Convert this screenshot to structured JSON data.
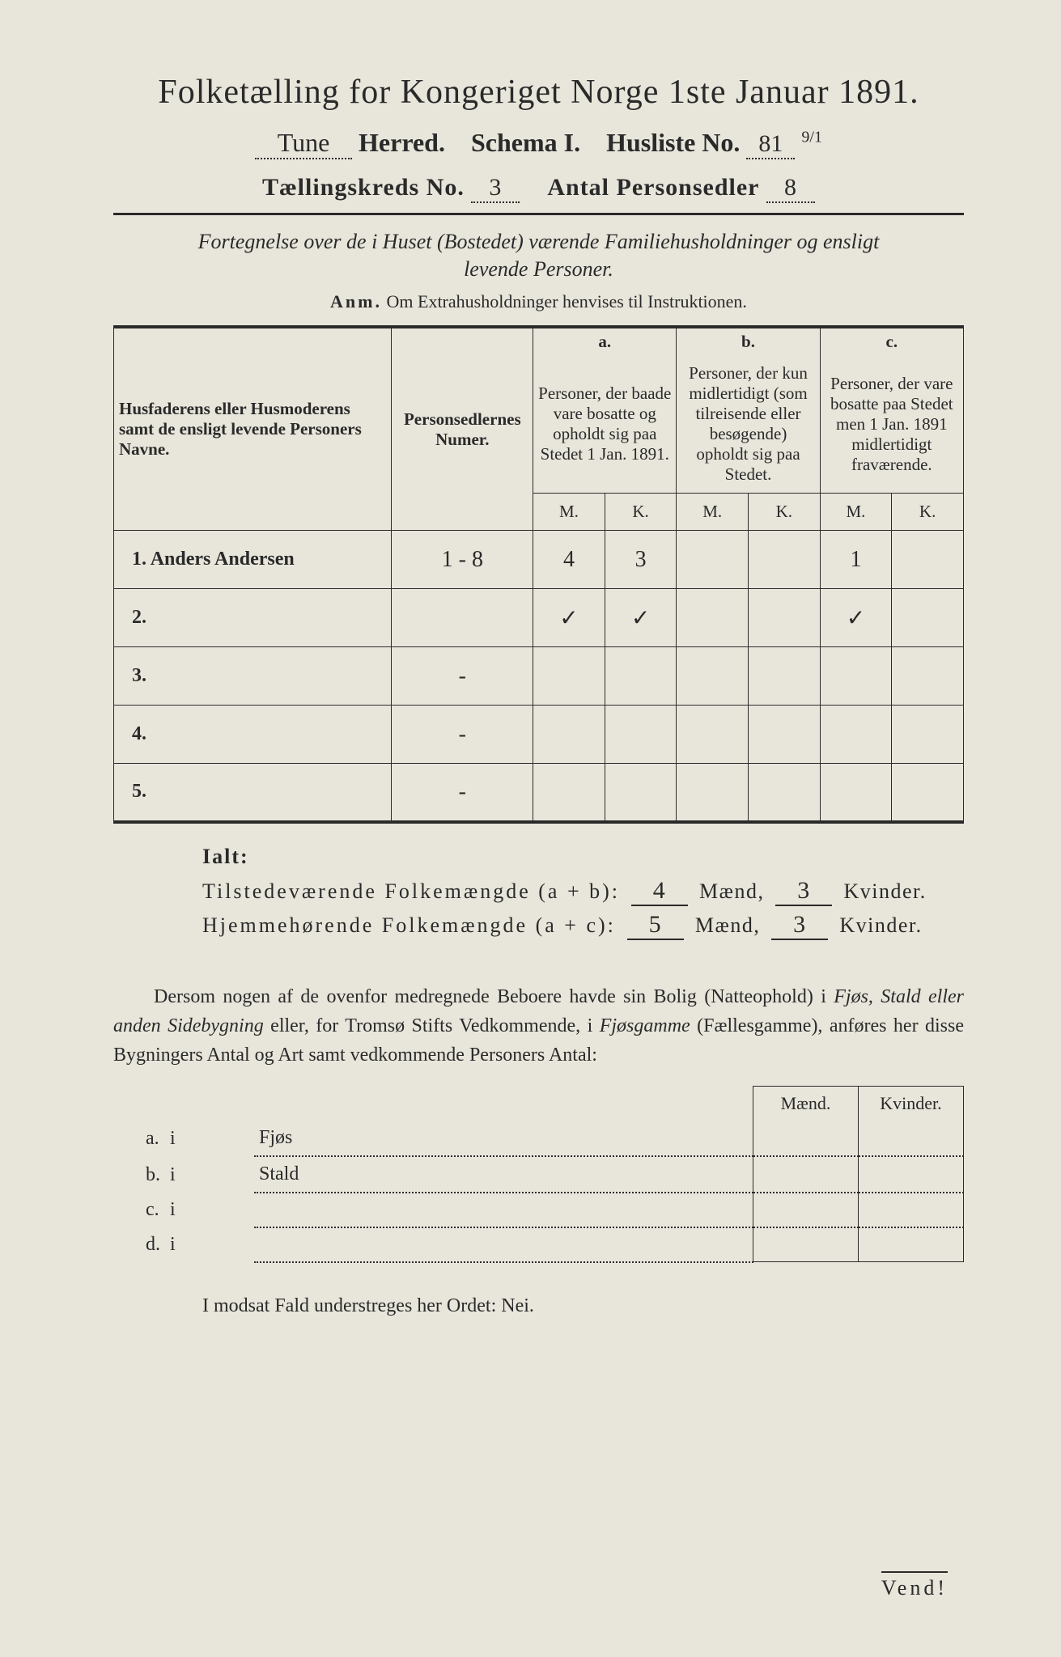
{
  "title": "Folketælling for Kongeriget Norge 1ste Januar 1891.",
  "header": {
    "herred_value": "Tune",
    "herred_label": "Herred.",
    "schema_label": "Schema I.",
    "husliste_label": "Husliste No.",
    "husliste_no": "81",
    "husliste_suffix": "9/1",
    "kreds_label": "Tællingskreds No.",
    "kreds_no": "3",
    "personsedler_label": "Antal Personsedler",
    "personsedler_no": "8"
  },
  "subtitle_line1": "Fortegnelse over de i Huset (Bostedet) værende Familiehusholdninger og ensligt",
  "subtitle_line2": "levende Personer.",
  "anm_label": "Anm.",
  "anm_text": "Om Extrahusholdninger henvises til Instruktionen.",
  "table": {
    "col_name_header": "Husfaderens eller Husmoderens samt de ensligt levende Personers Navne.",
    "col_num_header": "Personsedlernes Numer.",
    "col_a_letter": "a.",
    "col_a_header": "Personer, der baade vare bosatte og opholdt sig paa Stedet 1 Jan. 1891.",
    "col_b_letter": "b.",
    "col_b_header": "Personer, der kun midlertidigt (som tilreisende eller besøgende) opholdt sig paa Stedet.",
    "col_c_letter": "c.",
    "col_c_header": "Personer, der vare bosatte paa Stedet men 1 Jan. 1891 midlertidigt fraværende.",
    "m_label": "M.",
    "k_label": "K.",
    "rows": [
      {
        "num": "1.",
        "name": "Anders Andersen",
        "sedler": "1 - 8",
        "a_m": "4",
        "a_k": "3",
        "b_m": "",
        "b_k": "",
        "c_m": "1",
        "c_k": ""
      },
      {
        "num": "2.",
        "name": "",
        "sedler": "",
        "a_m": "✓",
        "a_k": "✓",
        "b_m": "",
        "b_k": "",
        "c_m": "✓",
        "c_k": ""
      },
      {
        "num": "3.",
        "name": "",
        "sedler": "-",
        "a_m": "",
        "a_k": "",
        "b_m": "",
        "b_k": "",
        "c_m": "",
        "c_k": ""
      },
      {
        "num": "4.",
        "name": "",
        "sedler": "-",
        "a_m": "",
        "a_k": "",
        "b_m": "",
        "b_k": "",
        "c_m": "",
        "c_k": ""
      },
      {
        "num": "5.",
        "name": "",
        "sedler": "-",
        "a_m": "",
        "a_k": "",
        "b_m": "",
        "b_k": "",
        "c_m": "",
        "c_k": ""
      }
    ]
  },
  "ialt": {
    "label": "Ialt:",
    "row1_label": "Tilstedeværende Folkemængde (a + b):",
    "row1_m": "4",
    "row1_k": "3",
    "row2_label": "Hjemmehørende Folkemængde (a + c):",
    "row2_m": "5",
    "row2_k": "3",
    "maend": "Mænd,",
    "kvinder": "Kvinder."
  },
  "para_text": "Dersom nogen af de ovenfor medregnede Beboere havde sin Bolig (Natteophold) i Fjøs, Stald eller anden Sidebygning eller, for Tromsø Stifts Vedkommende, i Fjøsgamme (Fællesgamme), anføres her disse Bygningers Antal og Art samt vedkommende Personers Antal:",
  "para_italics": [
    "Fjøs, Stald eller anden Sidebygning",
    "Fjøsgamme"
  ],
  "side_table": {
    "maend": "Mænd.",
    "kvinder": "Kvinder.",
    "rows": [
      {
        "lab": "a.",
        "i": "i",
        "kind": "Fjøs"
      },
      {
        "lab": "b.",
        "i": "i",
        "kind": "Stald"
      },
      {
        "lab": "c.",
        "i": "i",
        "kind": ""
      },
      {
        "lab": "d.",
        "i": "i",
        "kind": ""
      }
    ]
  },
  "footer": "I modsat Fald understreges her Ordet: Nei.",
  "vend": "Vend!"
}
